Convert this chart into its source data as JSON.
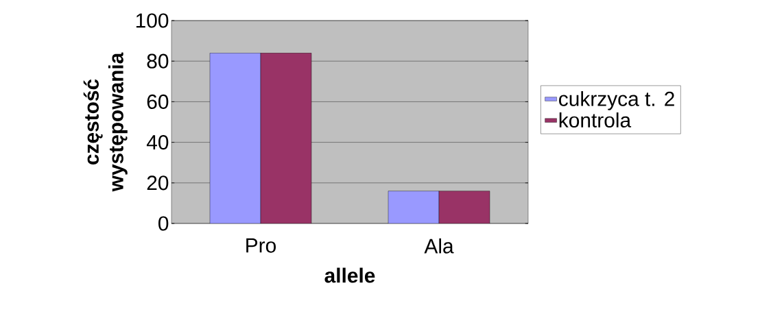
{
  "chart_data": {
    "type": "bar",
    "xlabel": "allele",
    "ylabel": "częstość występowania",
    "categories": [
      "Pro",
      "Ala"
    ],
    "series": [
      {
        "name": "cukrzyca t. 2",
        "color": "#9999ff",
        "values": [
          84,
          16
        ]
      },
      {
        "name": "kontrola",
        "color": "#993366",
        "values": [
          84,
          16
        ]
      }
    ],
    "ylim": [
      0,
      100
    ],
    "yticks": [
      0,
      20,
      40,
      60,
      80,
      100
    ],
    "grid": "y",
    "legend": "right"
  }
}
